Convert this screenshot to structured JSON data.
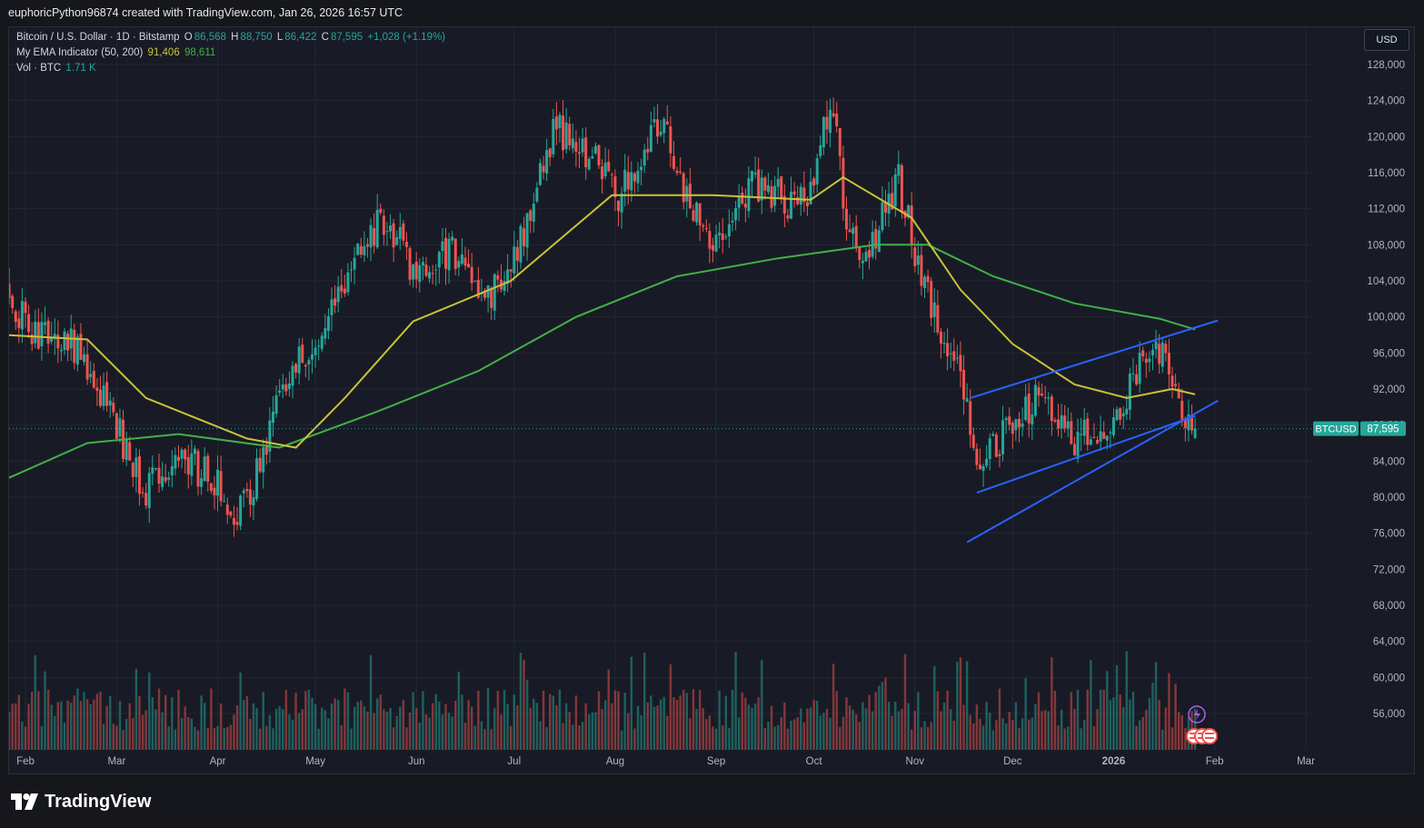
{
  "credit": "euphoricPython96874 created with TradingView.com, Jan 26, 2026 16:57 UTC",
  "legend": {
    "symbol": "Bitcoin / U.S. Dollar · 1D · Bitstamp",
    "o_label": "O",
    "o_value": "86,568",
    "h_label": "H",
    "h_value": "88,750",
    "l_label": "L",
    "l_value": "86,422",
    "c_label": "C",
    "c_value": "87,595",
    "change": "+1,028 (+1.19%)",
    "ema_name": "My EMA Indicator (50, 200)",
    "ema50_value": "91,406",
    "ema200_value": "98,611",
    "vol_name": "Vol · BTC",
    "vol_value": "1.71 K"
  },
  "currency_button": "USD",
  "price_badge": {
    "symbol": "BTCUSD",
    "price": "87,595"
  },
  "footer_brand": "TradingView",
  "colors": {
    "background": "#181b25",
    "up": "#26a69a",
    "down": "#ef5350",
    "ema50": "#c9c23a",
    "ema200": "#43b048",
    "channel": "#2962ff"
  },
  "chart_data": {
    "type": "candlestick",
    "symbol": "BTCUSD",
    "interval": "1D",
    "x_ticks": [
      "Feb",
      "Mar",
      "Apr",
      "May",
      "Jun",
      "Jul",
      "Aug",
      "Sep",
      "Oct",
      "Nov",
      "Dec",
      "2026",
      "Feb",
      "Mar"
    ],
    "y_ticks": [
      "56,000",
      "60,000",
      "64,000",
      "68,000",
      "72,000",
      "76,000",
      "80,000",
      "84,000",
      "88,000",
      "92,000",
      "96,000",
      "100,000",
      "104,000",
      "108,000",
      "112,000",
      "116,000",
      "120,000",
      "124,000",
      "128,000"
    ],
    "ylim": [
      51500,
      129500
    ],
    "last_price": 87595,
    "grid": true,
    "price_path": [
      [
        "2025-01-26",
        102000
      ],
      [
        "2025-02-03",
        98500
      ],
      [
        "2025-02-15",
        97000
      ],
      [
        "2025-02-24",
        91500
      ],
      [
        "2025-03-03",
        86000
      ],
      [
        "2025-03-10",
        80500
      ],
      [
        "2025-03-20",
        84500
      ],
      [
        "2025-03-29",
        82500
      ],
      [
        "2025-04-07",
        78000
      ],
      [
        "2025-04-15",
        84500
      ],
      [
        "2025-04-22",
        93500
      ],
      [
        "2025-05-01",
        96500
      ],
      [
        "2025-05-10",
        104000
      ],
      [
        "2025-05-22",
        111000
      ],
      [
        "2025-06-01",
        105000
      ],
      [
        "2025-06-12",
        107500
      ],
      [
        "2025-06-22",
        101500
      ],
      [
        "2025-07-01",
        106500
      ],
      [
        "2025-07-14",
        121000
      ],
      [
        "2025-07-25",
        118000
      ],
      [
        "2025-08-02",
        113000
      ],
      [
        "2025-08-14",
        122000
      ],
      [
        "2025-08-25",
        112000
      ],
      [
        "2025-09-01",
        108500
      ],
      [
        "2025-09-12",
        114500
      ],
      [
        "2025-09-23",
        113000
      ],
      [
        "2025-09-30",
        114000
      ],
      [
        "2025-10-06",
        124500
      ],
      [
        "2025-10-11",
        111000
      ],
      [
        "2025-10-17",
        106500
      ],
      [
        "2025-10-27",
        115000
      ],
      [
        "2025-11-04",
        103000
      ],
      [
        "2025-11-14",
        95000
      ],
      [
        "2025-11-21",
        84000
      ],
      [
        "2025-12-01",
        87500
      ],
      [
        "2025-12-10",
        92500
      ],
      [
        "2025-12-18",
        86500
      ],
      [
        "2025-12-31",
        88000
      ],
      [
        "2026-01-06",
        92500
      ],
      [
        "2026-01-14",
        96500
      ],
      [
        "2026-01-19",
        93000
      ],
      [
        "2026-01-23",
        89500
      ],
      [
        "2026-01-26",
        87595
      ]
    ],
    "ema50_path": [
      [
        "2025-01-26",
        98000
      ],
      [
        "2025-02-20",
        97500
      ],
      [
        "2025-03-10",
        91000
      ],
      [
        "2025-04-10",
        86500
      ],
      [
        "2025-04-25",
        85500
      ],
      [
        "2025-05-10",
        91000
      ],
      [
        "2025-05-31",
        99500
      ],
      [
        "2025-06-30",
        104000
      ],
      [
        "2025-07-31",
        113500
      ],
      [
        "2025-08-31",
        113500
      ],
      [
        "2025-09-30",
        113000
      ],
      [
        "2025-10-10",
        115500
      ],
      [
        "2025-10-31",
        111000
      ],
      [
        "2025-11-15",
        103000
      ],
      [
        "2025-12-01",
        97000
      ],
      [
        "2025-12-20",
        92500
      ],
      [
        "2026-01-05",
        91000
      ],
      [
        "2026-01-19",
        92000
      ],
      [
        "2026-01-26",
        91406
      ]
    ],
    "ema200_path": [
      [
        "2025-01-26",
        82000
      ],
      [
        "2025-02-20",
        86000
      ],
      [
        "2025-03-20",
        87000
      ],
      [
        "2025-04-20",
        85500
      ],
      [
        "2025-05-20",
        89500
      ],
      [
        "2025-06-20",
        94000
      ],
      [
        "2025-07-20",
        100000
      ],
      [
        "2025-08-20",
        104500
      ],
      [
        "2025-09-20",
        106500
      ],
      [
        "2025-10-20",
        108000
      ],
      [
        "2025-11-05",
        108000
      ],
      [
        "2025-11-25",
        104500
      ],
      [
        "2025-12-20",
        101500
      ],
      [
        "2026-01-15",
        99800
      ],
      [
        "2026-01-26",
        98611
      ]
    ],
    "channel_lines": [
      {
        "from": [
          "2025-11-18",
          91000
        ],
        "to": [
          "2026-02-02",
          99600
        ]
      },
      {
        "from": [
          "2025-11-17",
          75000
        ],
        "to": [
          "2026-02-02",
          90700
        ]
      },
      {
        "from": [
          "2025-11-20",
          80500
        ],
        "to": [
          "2026-01-26",
          89000
        ]
      }
    ]
  }
}
